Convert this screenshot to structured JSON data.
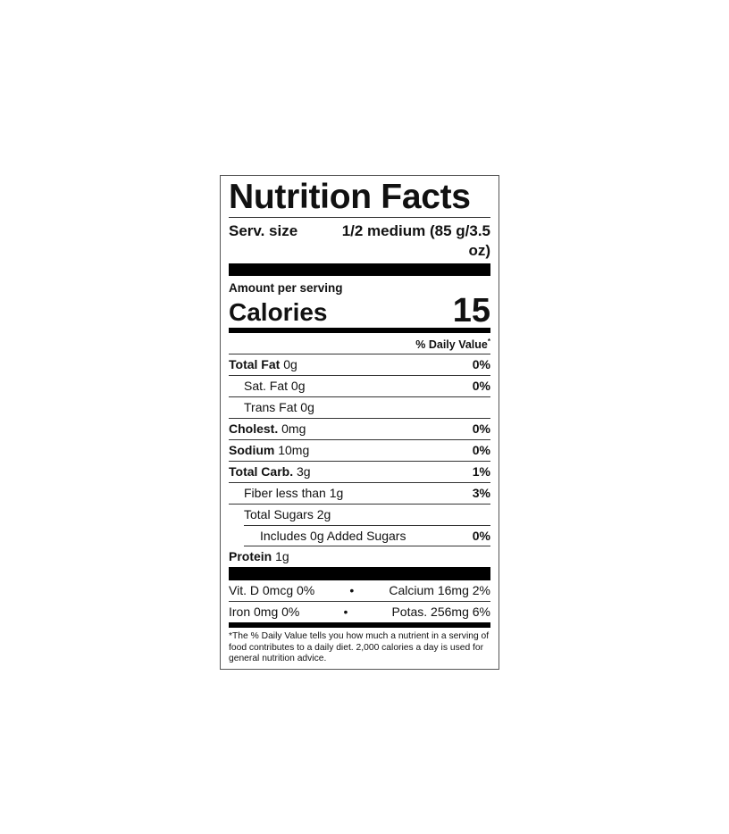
{
  "title": "Nutrition Facts",
  "serving": {
    "label": "Serv. size",
    "value": "1/2 medium (85 g/3.5 oz)"
  },
  "amount_per_serving": "Amount per serving",
  "calories": {
    "label": "Calories",
    "value": "15"
  },
  "daily_value_header": "% Daily Value",
  "daily_value_mark": "*",
  "nutrients": [
    {
      "name": "Total Fat",
      "amount": "0g",
      "dv": "0%"
    },
    {
      "name": "Sat. Fat",
      "amount": "0g",
      "dv": "0%"
    },
    {
      "name": "Trans Fat",
      "amount": "0g",
      "dv": ""
    },
    {
      "name": "Cholest.",
      "amount": "0mg",
      "dv": "0%"
    },
    {
      "name": "Sodium",
      "amount": "10mg",
      "dv": "0%"
    },
    {
      "name": "Total Carb.",
      "amount": "3g",
      "dv": "1%"
    },
    {
      "name": "Fiber less than 1g",
      "amount": "",
      "dv": "3%"
    },
    {
      "name": "Total Sugars",
      "amount": "2g",
      "dv": ""
    },
    {
      "name": "Includes 0g Added Sugars",
      "amount": "",
      "dv": "0%"
    },
    {
      "name": "Protein",
      "amount": "1g",
      "dv": ""
    }
  ],
  "vitamins": [
    {
      "left": "Vit. D 0mcg 0%",
      "sep": "•",
      "right": "Calcium 16mg 2%"
    },
    {
      "left": "Iron 0mg 0%",
      "sep": "•",
      "right": "Potas. 256mg 6%"
    }
  ],
  "footnote": "*The % Daily Value tells you how much a nutrient in a serving of food contributes to a daily diet. 2,000 calories a day is used for general nutrition advice."
}
